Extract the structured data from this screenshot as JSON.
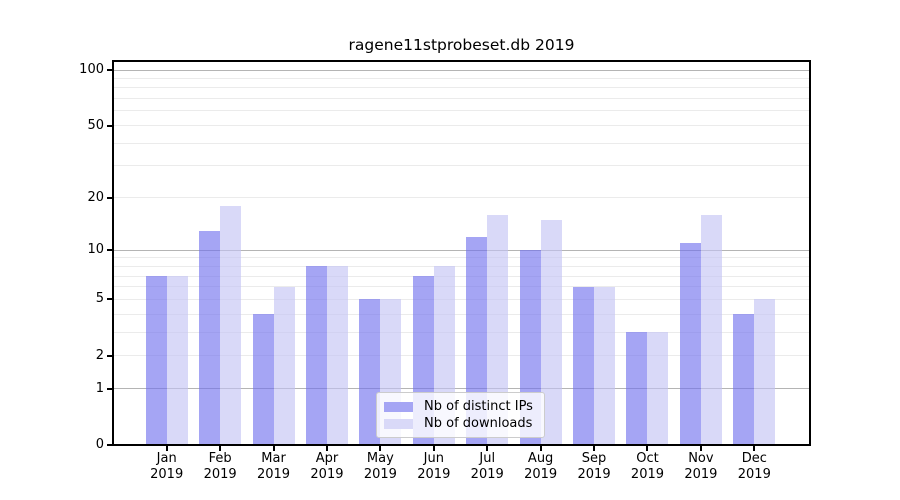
{
  "title": "ragene11stprobeset.db 2019",
  "legend": {
    "items": [
      {
        "label": "Nb of distinct IPs",
        "color": "#a5a5f4"
      },
      {
        "label": "Nb of downloads",
        "color": "#d9d9f8"
      }
    ]
  },
  "chart_data": {
    "type": "bar",
    "title": "ragene11stprobeset.db 2019",
    "categories": [
      {
        "month": "Jan",
        "year": "2019"
      },
      {
        "month": "Feb",
        "year": "2019"
      },
      {
        "month": "Mar",
        "year": "2019"
      },
      {
        "month": "Apr",
        "year": "2019"
      },
      {
        "month": "May",
        "year": "2019"
      },
      {
        "month": "Jun",
        "year": "2019"
      },
      {
        "month": "Jul",
        "year": "2019"
      },
      {
        "month": "Aug",
        "year": "2019"
      },
      {
        "month": "Sep",
        "year": "2019"
      },
      {
        "month": "Oct",
        "year": "2019"
      },
      {
        "month": "Nov",
        "year": "2019"
      },
      {
        "month": "Dec",
        "year": "2019"
      }
    ],
    "series": [
      {
        "name": "Nb of distinct IPs",
        "color": "#a5a5f4",
        "values": [
          7,
          13,
          4,
          8,
          5,
          7,
          12,
          10,
          6,
          3,
          11,
          4
        ]
      },
      {
        "name": "Nb of downloads",
        "color": "#d9d9f8",
        "values": [
          7,
          18,
          6,
          8,
          5,
          8,
          16,
          15,
          6,
          3,
          16,
          5
        ]
      }
    ],
    "y_scale": "log1p",
    "y_ticks": [
      100,
      50,
      20,
      10,
      5,
      2,
      1,
      0
    ],
    "ylim": [
      0,
      112
    ],
    "grid": {
      "major": [
        1,
        10,
        100
      ],
      "minor": [
        2,
        3,
        4,
        5,
        6,
        7,
        8,
        9,
        20,
        30,
        40,
        50,
        60,
        70,
        80,
        90
      ]
    },
    "legend_position": "lower center",
    "grid_on": true
  }
}
